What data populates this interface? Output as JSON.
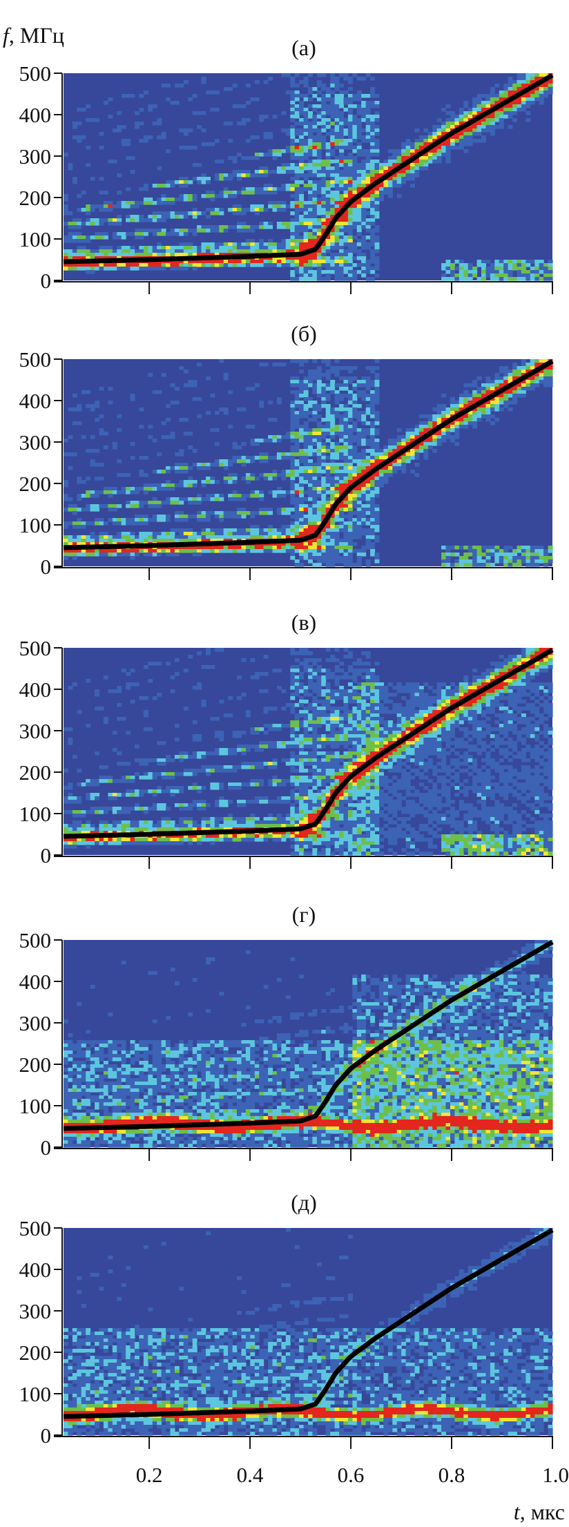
{
  "chart_data": [
    {
      "type": "heatmap",
      "title": "(а)",
      "curve_color": "#000000"
    },
    {
      "type": "heatmap",
      "title": "(б)",
      "curve_color": "#000000"
    },
    {
      "type": "heatmap",
      "title": "(в)",
      "curve_color": "#000000"
    },
    {
      "type": "heatmap",
      "title": "(г)",
      "curve_color": "#000000"
    },
    {
      "type": "heatmap",
      "title": "(д)",
      "curve_color": "#000000"
    }
  ],
  "axes": {
    "ylabel_var": "f",
    "ylabel_unit": ", МГц",
    "xlabel_var": "t",
    "xlabel_unit": ", мкс",
    "ylim": [
      0,
      500
    ],
    "xlim": [
      0.03,
      1.0
    ],
    "yticks": [
      "0",
      "100",
      "200",
      "300",
      "400",
      "500"
    ],
    "ytick_values": [
      0,
      100,
      200,
      300,
      400,
      500
    ],
    "xticks": [
      "0.2",
      "0.4",
      "0.6",
      "0.8",
      "1.0"
    ],
    "xtick_values": [
      0.2,
      0.4,
      0.6,
      0.8,
      1.0
    ],
    "grid": false
  },
  "curve": {
    "t": [
      0.03,
      0.2,
      0.4,
      0.5,
      0.53,
      0.55,
      0.57,
      0.6,
      0.65,
      0.7,
      0.8,
      0.9,
      1.0
    ],
    "f": [
      45,
      50,
      58,
      63,
      75,
      110,
      150,
      190,
      235,
      275,
      355,
      425,
      495
    ]
  },
  "colormap": [
    "#37479a",
    "#3c63b5",
    "#5cc6de",
    "#6dbf4a",
    "#f2e634",
    "#e3261e"
  ]
}
